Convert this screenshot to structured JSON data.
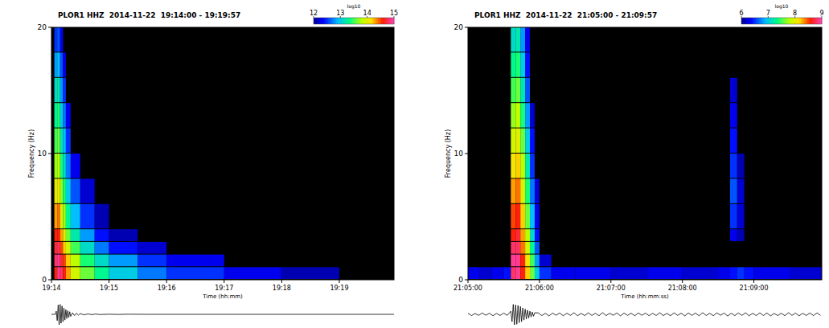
{
  "chart_data": [
    {
      "type": "heatmap",
      "title": "PLOR1 HHZ  2014-11-22  19:14:00 - 19:19:57",
      "xlabel": "Time (hh:mm)",
      "ylabel": "Frequency (Hz)",
      "xlim": [
        0,
        357
      ],
      "xticks": [
        {
          "value": 0,
          "label": "19:14"
        },
        {
          "value": 60,
          "label": "19:15"
        },
        {
          "value": 120,
          "label": "19:16"
        },
        {
          "value": 180,
          "label": "19:17"
        },
        {
          "value": 240,
          "label": "19:18"
        },
        {
          "value": 300,
          "label": "19:19"
        }
      ],
      "ylim": [
        0,
        20
      ],
      "yticks": [
        0,
        10,
        20
      ],
      "time_bins": [
        0,
        3,
        6,
        9,
        12,
        15,
        20,
        30,
        45,
        60,
        90,
        120,
        180,
        240,
        300,
        357
      ],
      "freq_bins": [
        0,
        1,
        2,
        3,
        4,
        6,
        8,
        10,
        12,
        14,
        16,
        18,
        20
      ],
      "values": [
        [
          null,
          14.6,
          14.9,
          14.8,
          14.6,
          14.3,
          13.9,
          13.6,
          13.3,
          13.0,
          12.7,
          12.5,
          12.3,
          12.1,
          null
        ],
        [
          null,
          14.8,
          14.9,
          14.7,
          14.5,
          14.2,
          13.8,
          13.4,
          13.1,
          12.8,
          12.5,
          12.3,
          null,
          null,
          null
        ],
        [
          null,
          14.7,
          14.8,
          14.5,
          14.2,
          13.9,
          13.5,
          13.1,
          12.7,
          12.4,
          12.2,
          null,
          null,
          null,
          null
        ],
        [
          null,
          14.6,
          14.6,
          14.3,
          14.0,
          13.6,
          13.2,
          12.8,
          12.4,
          12.1,
          null,
          null,
          null,
          null,
          null
        ],
        [
          null,
          14.3,
          14.4,
          14.0,
          13.7,
          13.3,
          12.9,
          12.5,
          12.1,
          null,
          null,
          null,
          null,
          null,
          null
        ],
        [
          null,
          14.0,
          14.1,
          13.7,
          13.4,
          13.0,
          12.6,
          12.2,
          null,
          null,
          null,
          null,
          null,
          null,
          null
        ],
        [
          null,
          13.7,
          13.8,
          13.4,
          13.1,
          12.7,
          12.3,
          null,
          null,
          null,
          null,
          null,
          null,
          null,
          null
        ],
        [
          null,
          13.5,
          13.6,
          13.2,
          12.9,
          12.5,
          null,
          null,
          null,
          null,
          null,
          null,
          null,
          null,
          null
        ],
        [
          null,
          13.3,
          13.4,
          13.0,
          12.7,
          12.3,
          null,
          null,
          null,
          null,
          null,
          null,
          null,
          null,
          null
        ],
        [
          null,
          13.1,
          13.2,
          12.8,
          12.5,
          null,
          null,
          null,
          null,
          null,
          null,
          null,
          null,
          null,
          null
        ],
        [
          null,
          12.8,
          12.9,
          12.6,
          12.3,
          null,
          null,
          null,
          null,
          null,
          null,
          null,
          null,
          null,
          null
        ],
        [
          null,
          12.5,
          12.6,
          12.3,
          null,
          null,
          null,
          null,
          null,
          null,
          null,
          null,
          null,
          null,
          null
        ]
      ],
      "colorbar": {
        "label": "log10",
        "range": [
          12,
          15
        ],
        "ticks": [
          12,
          13,
          14,
          15
        ]
      },
      "trace": {
        "ylim": [
          -1,
          1
        ],
        "x": [
          0,
          4,
          5,
          6,
          7,
          8,
          9,
          10,
          11,
          12,
          13,
          14,
          15,
          16,
          17,
          18,
          19,
          20,
          22,
          24,
          26,
          28,
          30,
          34,
          38,
          42,
          46,
          50,
          60,
          70,
          80,
          100,
          357
        ],
        "values": [
          0,
          0,
          0.3,
          -0.6,
          0.9,
          -1,
          0.95,
          -0.85,
          0.8,
          -0.7,
          0.6,
          -0.55,
          0.45,
          -0.4,
          0.35,
          -0.3,
          0.25,
          -0.2,
          0.15,
          -0.12,
          0.1,
          -0.08,
          0.07,
          -0.05,
          0.04,
          -0.03,
          0.03,
          -0.02,
          0.01,
          -0.01,
          0.01,
          0,
          0
        ]
      }
    },
    {
      "type": "heatmap",
      "title": "PLOR1 HHZ  2014-11-22  21:05:00 - 21:09:57",
      "xlabel": "Time (hh:mm:ss)",
      "ylabel": "Frequency (Hz)",
      "xlim": [
        0,
        297
      ],
      "xticks": [
        {
          "value": 0,
          "label": "21:05:00"
        },
        {
          "value": 60,
          "label": "21:06:00"
        },
        {
          "value": 120,
          "label": "21:07:00"
        },
        {
          "value": 180,
          "label": "21:08:00"
        },
        {
          "value": 240,
          "label": "21:09:00"
        }
      ],
      "ylim": [
        0,
        20
      ],
      "yticks": [
        0,
        10,
        20
      ],
      "time_bins": [
        0,
        10,
        20,
        30,
        36,
        40,
        44,
        48,
        52,
        56,
        60,
        70,
        90,
        120,
        150,
        180,
        210,
        220,
        226,
        232,
        240,
        270,
        297
      ],
      "freq_bins": [
        0,
        1,
        2,
        3,
        4,
        6,
        8,
        10,
        12,
        14,
        16,
        18,
        20
      ],
      "values": [
        [
          6.3,
          6.2,
          6.3,
          6.4,
          8.8,
          8.9,
          8.6,
          8.2,
          7.6,
          7.0,
          6.5,
          6.3,
          6.3,
          6.2,
          6.3,
          6.2,
          6.3,
          6.4,
          6.5,
          6.4,
          6.3,
          6.2
        ],
        [
          null,
          null,
          null,
          null,
          8.9,
          8.9,
          8.6,
          8.1,
          7.5,
          6.8,
          6.2,
          null,
          null,
          null,
          null,
          null,
          null,
          null,
          null,
          null,
          null,
          null
        ],
        [
          null,
          null,
          null,
          null,
          8.8,
          8.8,
          8.4,
          7.9,
          7.3,
          6.6,
          null,
          null,
          null,
          null,
          null,
          null,
          null,
          null,
          null,
          null,
          null,
          null
        ],
        [
          null,
          null,
          null,
          null,
          8.6,
          8.7,
          8.3,
          7.8,
          7.1,
          6.4,
          null,
          null,
          null,
          null,
          null,
          null,
          null,
          6.3,
          6.1,
          null,
          null,
          null
        ],
        [
          null,
          null,
          null,
          null,
          8.5,
          8.6,
          8.2,
          7.6,
          6.9,
          6.3,
          null,
          null,
          null,
          null,
          null,
          null,
          null,
          6.5,
          6.2,
          null,
          null,
          null
        ],
        [
          null,
          null,
          null,
          null,
          8.3,
          8.4,
          8.0,
          7.4,
          6.7,
          6.2,
          null,
          null,
          null,
          null,
          null,
          null,
          null,
          6.6,
          6.2,
          null,
          null,
          null
        ],
        [
          null,
          null,
          null,
          null,
          8.1,
          8.2,
          7.8,
          7.2,
          6.5,
          null,
          null,
          null,
          null,
          null,
          null,
          null,
          null,
          6.5,
          6.1,
          null,
          null,
          null
        ],
        [
          null,
          null,
          null,
          null,
          7.9,
          8.0,
          7.6,
          7.0,
          6.4,
          null,
          null,
          null,
          null,
          null,
          null,
          null,
          null,
          6.4,
          null,
          null,
          null,
          null
        ],
        [
          null,
          null,
          null,
          null,
          7.7,
          7.8,
          7.4,
          6.8,
          6.2,
          null,
          null,
          null,
          null,
          null,
          null,
          null,
          null,
          6.3,
          null,
          null,
          null,
          null
        ],
        [
          null,
          null,
          null,
          null,
          7.5,
          7.6,
          7.2,
          6.6,
          null,
          null,
          null,
          null,
          null,
          null,
          null,
          null,
          null,
          6.2,
          null,
          null,
          null,
          null
        ],
        [
          null,
          null,
          null,
          null,
          7.3,
          7.4,
          7.0,
          6.4,
          null,
          null,
          null,
          null,
          null,
          null,
          null,
          null,
          null,
          null,
          null,
          null,
          null,
          null
        ],
        [
          null,
          null,
          null,
          null,
          7.1,
          7.2,
          6.8,
          6.3,
          null,
          null,
          null,
          null,
          null,
          null,
          null,
          null,
          null,
          null,
          null,
          null,
          null,
          null
        ]
      ],
      "colorbar": {
        "label": "log10",
        "range": [
          6,
          9
        ],
        "ticks": [
          6,
          7,
          8,
          9
        ]
      },
      "trace": {
        "ylim": [
          -1,
          1
        ],
        "x": [
          0,
          3,
          6,
          9,
          12,
          15,
          18,
          21,
          24,
          27,
          30,
          33,
          36,
          37,
          38,
          39,
          40,
          41,
          42,
          43,
          44,
          45,
          46,
          47,
          48,
          49,
          50,
          51,
          52,
          53,
          54,
          55,
          56,
          59,
          62,
          65,
          68,
          71,
          74,
          77,
          80,
          83,
          86,
          89,
          92,
          95,
          98,
          101,
          104,
          107,
          110,
          113,
          116,
          119,
          122,
          125,
          128,
          131,
          134,
          137,
          140,
          143,
          146,
          149,
          152,
          155,
          158,
          161,
          164,
          167,
          170,
          173,
          176,
          179,
          182,
          185,
          188,
          191,
          194,
          197,
          200,
          203,
          206,
          209,
          212,
          215,
          218,
          221,
          224,
          227,
          230,
          233,
          236,
          239,
          242,
          245,
          248,
          251,
          254,
          257,
          260,
          263,
          266,
          269,
          272,
          275,
          278,
          281,
          284,
          287,
          290,
          293,
          296
        ],
        "values": [
          0.1,
          -0.12,
          0.08,
          -0.1,
          0.13,
          -0.09,
          0.11,
          -0.13,
          0.09,
          -0.11,
          0.12,
          -0.1,
          0.3,
          -0.7,
          0.95,
          -1,
          0.9,
          -0.95,
          0.85,
          -0.8,
          0.75,
          -0.7,
          0.6,
          -0.55,
          0.5,
          -0.45,
          0.4,
          -0.35,
          0.3,
          -0.25,
          0.22,
          -0.18,
          0.15,
          0.14,
          -0.12,
          0.1,
          -0.15,
          0.12,
          -0.09,
          0.13,
          -0.14,
          0.11,
          -0.1,
          0.15,
          -0.13,
          0.09,
          -0.12,
          0.14,
          -0.11,
          0.1,
          -0.13,
          0.16,
          -0.12,
          0.1,
          -0.09,
          0.13,
          -0.15,
          0.12,
          -0.1,
          0.11,
          -0.14,
          0.13,
          -0.09,
          0.12,
          -0.13,
          0.1,
          -0.11,
          0.15,
          -0.12,
          0.09,
          -0.13,
          0.14,
          -0.1,
          0.11,
          -0.15,
          0.13,
          -0.1,
          0.12,
          -0.14,
          0.16,
          -0.11,
          0.1,
          -0.13,
          0.14,
          -0.09,
          0.12,
          -0.16,
          0.11,
          -0.12,
          0.13,
          -0.1,
          0.15,
          -0.14,
          0.1,
          -0.12,
          0.14,
          -0.11,
          0.13,
          -0.15,
          0.09,
          -0.12,
          0.11,
          -0.13,
          0.16,
          -0.1,
          0.12,
          -0.14,
          0.1,
          -0.11,
          0.13,
          -0.12,
          0.14,
          -0.1
        ]
      }
    }
  ]
}
